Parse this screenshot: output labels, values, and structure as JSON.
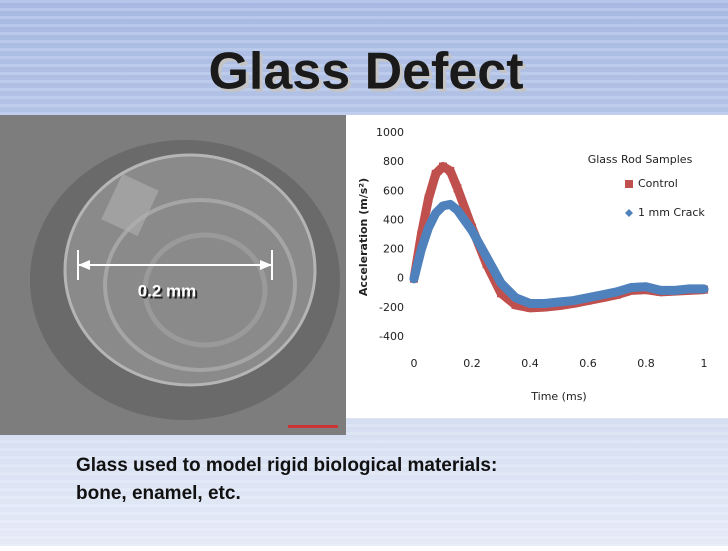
{
  "slide": {
    "title": "Glass Defect",
    "scale_label": "0.2 mm",
    "caption": [
      "Glass used to model rigid biological materials:",
      "bone, enamel, etc."
    ]
  },
  "chart_data": {
    "type": "line",
    "title": "Glass Rod Samples",
    "x_label": "Time (ms)",
    "y_label": "Acceleration  (m/s²)",
    "x": [
      0,
      0.025,
      0.05,
      0.075,
      0.1,
      0.125,
      0.15,
      0.2,
      0.25,
      0.3,
      0.35,
      0.4,
      0.45,
      0.5,
      0.55,
      0.6,
      0.65,
      0.7,
      0.75,
      0.8,
      0.85,
      0.9,
      0.95,
      1
    ],
    "series": [
      {
        "name": "Control",
        "color": "#c0504d",
        "marker": "square",
        "values": [
          0,
          300,
          550,
          720,
          770,
          740,
          620,
          350,
          100,
          -100,
          -180,
          -200,
          -195,
          -185,
          -170,
          -150,
          -130,
          -110,
          -80,
          -75,
          -90,
          -85,
          -80,
          -75
        ]
      },
      {
        "name": "1 mm Crack",
        "color": "#4f81bd",
        "marker": "diamond",
        "values": [
          0,
          200,
          350,
          450,
          500,
          510,
          470,
          330,
          150,
          -30,
          -130,
          -170,
          -170,
          -160,
          -150,
          -130,
          -110,
          -90,
          -60,
          -55,
          -80,
          -80,
          -70,
          -70
        ]
      }
    ],
    "xlim": [
      0,
      1
    ],
    "xticks": [
      0,
      0.2,
      0.4,
      0.6,
      0.8,
      1
    ],
    "ylim": [
      -400,
      1000
    ],
    "yticks": [
      -400,
      -200,
      0,
      200,
      400,
      600,
      800,
      1000
    ],
    "grid": false,
    "legend": "upper right"
  }
}
